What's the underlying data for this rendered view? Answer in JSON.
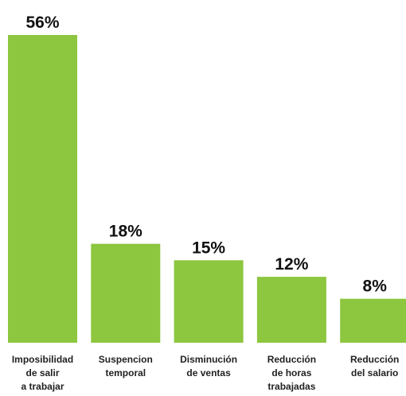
{
  "chart_data": {
    "type": "bar",
    "categories": [
      [
        "Imposibilidad",
        "de salir",
        "a trabajar"
      ],
      [
        "Suspencion",
        "temporal"
      ],
      [
        "Disminución",
        "de ventas"
      ],
      [
        "Reducción",
        "de horas",
        "trabajadas"
      ],
      [
        "Reducción",
        "del salario"
      ]
    ],
    "values": [
      56,
      18,
      15,
      12,
      8
    ],
    "value_labels": [
      "56%",
      "18%",
      "15%",
      "12%",
      "8%"
    ],
    "bar_color": "#8dc63f",
    "ylim": [
      0,
      56
    ],
    "grid": false,
    "legend": "none"
  }
}
